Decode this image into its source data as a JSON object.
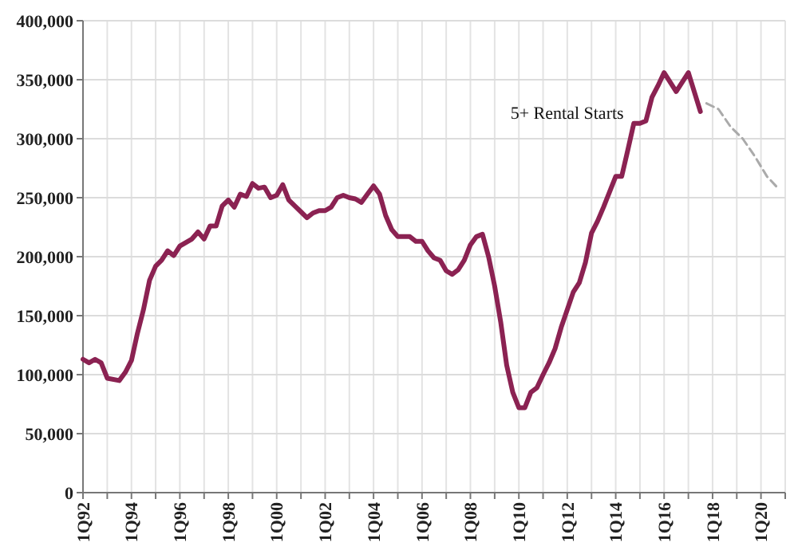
{
  "chart_data": {
    "type": "line",
    "xlim": [
      "1992-01",
      "2021-01"
    ],
    "ylim": [
      0,
      400000
    ],
    "yticks": [
      {
        "value": 0,
        "label": "0"
      },
      {
        "value": 50000,
        "label": "50,000"
      },
      {
        "value": 100000,
        "label": "100,000"
      },
      {
        "value": 150000,
        "label": "150,000"
      },
      {
        "value": 200000,
        "label": "200,000"
      },
      {
        "value": 250000,
        "label": "250,000"
      },
      {
        "value": 300000,
        "label": "300,000"
      },
      {
        "value": 350000,
        "label": "350,000"
      },
      {
        "value": 400000,
        "label": "400,000"
      }
    ],
    "xticks": [
      {
        "value": "1992-01",
        "label": "1Q92"
      },
      {
        "value": "1993-01",
        "label": null
      },
      {
        "value": "1994-01",
        "label": "1Q94"
      },
      {
        "value": "1995-01",
        "label": null
      },
      {
        "value": "1996-01",
        "label": "1Q96"
      },
      {
        "value": "1997-01",
        "label": null
      },
      {
        "value": "1998-01",
        "label": "1Q98"
      },
      {
        "value": "1999-01",
        "label": null
      },
      {
        "value": "2000-01",
        "label": "1Q00"
      },
      {
        "value": "2001-01",
        "label": null
      },
      {
        "value": "2002-01",
        "label": "1Q02"
      },
      {
        "value": "2003-01",
        "label": null
      },
      {
        "value": "2004-01",
        "label": "1Q04"
      },
      {
        "value": "2005-01",
        "label": null
      },
      {
        "value": "2006-01",
        "label": "1Q06"
      },
      {
        "value": "2007-01",
        "label": null
      },
      {
        "value": "2008-01",
        "label": "1Q08"
      },
      {
        "value": "2009-01",
        "label": null
      },
      {
        "value": "2010-01",
        "label": "1Q10"
      },
      {
        "value": "2011-01",
        "label": null
      },
      {
        "value": "2012-01",
        "label": "1Q12"
      },
      {
        "value": "2013-01",
        "label": null
      },
      {
        "value": "2014-01",
        "label": "1Q14"
      },
      {
        "value": "2015-01",
        "label": null
      },
      {
        "value": "2016-01",
        "label": "1Q16"
      },
      {
        "value": "2017-01",
        "label": null
      },
      {
        "value": "2018-01",
        "label": "1Q18"
      },
      {
        "value": "2019-01",
        "label": null
      },
      {
        "value": "2020-01",
        "label": "1Q20"
      },
      {
        "value": "2021-01",
        "label": null
      }
    ],
    "grid": true,
    "marker": "none",
    "series": [
      {
        "name": "5+ Rental Starts",
        "color": "#8b2252",
        "line_style": "solid",
        "x": [
          "1992-01",
          "1992-04",
          "1992-07",
          "1992-10",
          "1993-01",
          "1993-07",
          "1993-10",
          "1994-01",
          "1994-04",
          "1994-07",
          "1994-10",
          "1995-01",
          "1995-04",
          "1995-07",
          "1995-10",
          "1996-01",
          "1996-07",
          "1996-10",
          "1997-01",
          "1997-04",
          "1997-07",
          "1997-10",
          "1998-01",
          "1998-04",
          "1998-07",
          "1998-10",
          "1999-01",
          "1999-04",
          "1999-07",
          "1999-10",
          "2000-01",
          "2000-04",
          "2000-07",
          "2000-10",
          "2001-01",
          "2001-04",
          "2001-07",
          "2001-10",
          "2002-01",
          "2002-04",
          "2002-07",
          "2002-10",
          "2003-01",
          "2003-04",
          "2003-07",
          "2003-10",
          "2004-01",
          "2004-04",
          "2004-07",
          "2004-10",
          "2005-01",
          "2005-04",
          "2005-07",
          "2005-10",
          "2006-01",
          "2006-04",
          "2006-07",
          "2006-10",
          "2007-01",
          "2007-04",
          "2007-07",
          "2007-10",
          "2008-01",
          "2008-04",
          "2008-07",
          "2008-10",
          "2009-01",
          "2009-04",
          "2009-07",
          "2009-10",
          "2010-01",
          "2010-04",
          "2010-07",
          "2010-10",
          "2011-01",
          "2011-04",
          "2011-07",
          "2011-10",
          "2012-01",
          "2012-04",
          "2012-07",
          "2012-10",
          "2013-01",
          "2013-04",
          "2013-07",
          "2013-10",
          "2014-01",
          "2014-04",
          "2014-07",
          "2014-10",
          "2015-01",
          "2015-04",
          "2015-07",
          "2015-10",
          "2016-01",
          "2016-07",
          "2017-01",
          "2017-07"
        ],
        "values": [
          113000,
          110000,
          113000,
          110000,
          97000,
          95000,
          102000,
          112000,
          135000,
          155000,
          180000,
          192000,
          197000,
          205000,
          201000,
          209000,
          215000,
          221000,
          215000,
          226000,
          226000,
          243000,
          248000,
          242000,
          253000,
          251000,
          262000,
          258000,
          259000,
          250000,
          252000,
          261000,
          248000,
          243000,
          238000,
          233000,
          237000,
          239000,
          239000,
          242000,
          250000,
          252000,
          250000,
          249000,
          246000,
          253000,
          260000,
          253000,
          235000,
          223000,
          217000,
          217000,
          217000,
          213000,
          213000,
          205000,
          199000,
          197000,
          188000,
          185000,
          189000,
          197000,
          210000,
          217000,
          219000,
          200000,
          175000,
          145000,
          108000,
          85000,
          72000,
          72000,
          85000,
          89000,
          100000,
          110000,
          122000,
          140000,
          155000,
          170000,
          178000,
          195000,
          220000,
          230000,
          242000,
          255000,
          268000,
          268000,
          290000,
          313000,
          313000,
          315000,
          335000,
          345000,
          356000,
          340000,
          356000,
          323000
        ]
      },
      {
        "color": "#aaaaaa",
        "line_style": "dashed",
        "x": [
          "2017-10",
          "2018-04",
          "2018-10",
          "2019-04",
          "2019-10",
          "2020-04",
          "2020-10"
        ],
        "values": [
          330000,
          325000,
          310000,
          300000,
          285000,
          268000,
          257000
        ]
      }
    ]
  }
}
